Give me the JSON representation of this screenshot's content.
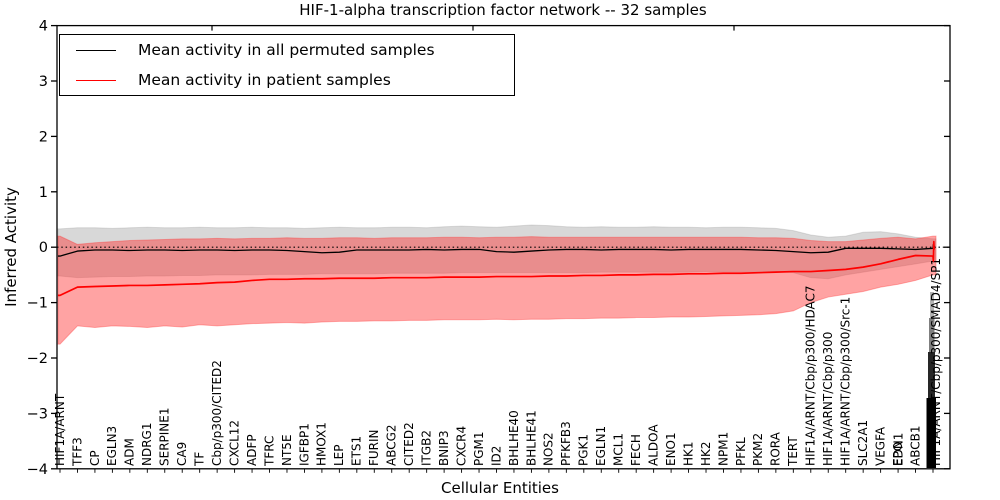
{
  "chart_data": {
    "type": "line",
    "title": "HIF-1-alpha transcription factor network -- 32 samples",
    "xlabel": "Cellular Entities",
    "ylabel": "Inferred Activity",
    "ylim": [
      -4,
      4
    ],
    "yticks": [
      4,
      3,
      2,
      1,
      0,
      -1,
      -2,
      -3,
      -4
    ],
    "grid": false,
    "zero_line": 0,
    "legend_position": "upper left",
    "x_categories": [
      "HIF1A/ARNT",
      "TFF3",
      "CP",
      "EGLN3",
      "ADM",
      "NDRG1",
      "SERPINE1",
      "CA9",
      "TF",
      "Cbp/p300/CITED2",
      "CXCL12",
      "ADFP",
      "TFRC",
      "NT5E",
      "IGFBP1",
      "HMOX1",
      "LEP",
      "ETS1",
      "FURIN",
      "ABCG2",
      "CITED2",
      "ITGB2",
      "BNIP3",
      "CXCR4",
      "PGM1",
      "ID2",
      "BHLHE40",
      "BHLHE41",
      "NOS2",
      "PFKFB3",
      "PGK1",
      "EGLN1",
      "MCL1",
      "FECH",
      "ALDOA",
      "ENO1",
      "HK1",
      "HK2",
      "NPM1",
      "PFKL",
      "PKM2",
      "RORA",
      "TERT",
      "HIF1A/ARNT/Cbp/p300/HDAC7",
      "HIF1A/ARNT/Cbp/p300",
      "HIF1A/ARNT/Cbp/p300/Src-1",
      "SLC2A1",
      "VEGFA",
      "EPO",
      "ABCB1",
      "HIF1A/ARNT/Cbp/p300/SMAD4/SP1"
    ],
    "x_overlap_labels": [
      {
        "index": 48,
        "label": "EDN1"
      }
    ],
    "x_cluster": {
      "index": 50,
      "illegible_overlap_blob": true
    },
    "series": [
      {
        "name": "Mean activity in all permuted samples",
        "color": "#000000",
        "band_color": "#999999",
        "mean": [
          -0.16,
          -0.07,
          -0.05,
          -0.05,
          -0.06,
          -0.05,
          -0.05,
          -0.06,
          -0.05,
          -0.05,
          -0.06,
          -0.05,
          -0.05,
          -0.06,
          -0.08,
          -0.1,
          -0.09,
          -0.05,
          -0.05,
          -0.05,
          -0.05,
          -0.04,
          -0.05,
          -0.04,
          -0.04,
          -0.08,
          -0.09,
          -0.07,
          -0.05,
          -0.04,
          -0.04,
          -0.05,
          -0.04,
          -0.04,
          -0.04,
          -0.05,
          -0.04,
          -0.04,
          -0.04,
          -0.04,
          -0.05,
          -0.06,
          -0.08,
          -0.1,
          -0.09,
          -0.02,
          -0.02,
          -0.02,
          -0.03,
          -0.04,
          -0.02
        ],
        "band_upper": [
          0.33,
          0.35,
          0.35,
          0.34,
          0.35,
          0.36,
          0.35,
          0.35,
          0.36,
          0.35,
          0.35,
          0.36,
          0.35,
          0.35,
          0.34,
          0.35,
          0.36,
          0.35,
          0.35,
          0.36,
          0.36,
          0.35,
          0.37,
          0.38,
          0.37,
          0.36,
          0.38,
          0.4,
          0.39,
          0.37,
          0.36,
          0.37,
          0.36,
          0.36,
          0.37,
          0.36,
          0.36,
          0.35,
          0.36,
          0.36,
          0.35,
          0.34,
          0.3,
          0.22,
          0.18,
          0.2,
          0.27,
          0.28,
          0.24,
          0.18,
          0.15
        ],
        "band_lower": [
          -0.52,
          -0.55,
          -0.54,
          -0.53,
          -0.53,
          -0.52,
          -0.52,
          -0.51,
          -0.51,
          -0.5,
          -0.5,
          -0.5,
          -0.49,
          -0.49,
          -0.49,
          -0.48,
          -0.48,
          -0.48,
          -0.48,
          -0.47,
          -0.47,
          -0.47,
          -0.47,
          -0.46,
          -0.46,
          -0.46,
          -0.46,
          -0.46,
          -0.46,
          -0.46,
          -0.46,
          -0.45,
          -0.45,
          -0.45,
          -0.45,
          -0.45,
          -0.45,
          -0.44,
          -0.44,
          -0.44,
          -0.44,
          -0.44,
          -0.46,
          -0.55,
          -0.57,
          -0.5,
          -0.45,
          -0.4,
          -0.35,
          -0.3,
          -0.25
        ],
        "end_spike": [
          0.05,
          -0.05,
          0.02,
          -0.02
        ]
      },
      {
        "name": "Mean activity in patient samples",
        "color": "#ff0000",
        "band_color": "#ff3333",
        "mean": [
          -0.87,
          -0.72,
          -0.71,
          -0.7,
          -0.69,
          -0.69,
          -0.68,
          -0.67,
          -0.66,
          -0.64,
          -0.63,
          -0.6,
          -0.58,
          -0.58,
          -0.57,
          -0.57,
          -0.56,
          -0.56,
          -0.56,
          -0.55,
          -0.55,
          -0.55,
          -0.54,
          -0.54,
          -0.54,
          -0.53,
          -0.53,
          -0.53,
          -0.52,
          -0.52,
          -0.51,
          -0.51,
          -0.5,
          -0.5,
          -0.49,
          -0.49,
          -0.48,
          -0.48,
          -0.47,
          -0.47,
          -0.46,
          -0.45,
          -0.44,
          -0.44,
          -0.42,
          -0.4,
          -0.36,
          -0.3,
          -0.22,
          -0.15,
          -0.16
        ],
        "band_upper": [
          0.2,
          0.05,
          0.08,
          0.1,
          0.12,
          0.13,
          0.14,
          0.15,
          0.15,
          0.16,
          0.15,
          0.16,
          0.16,
          0.17,
          0.16,
          0.16,
          0.17,
          0.17,
          0.16,
          0.17,
          0.17,
          0.17,
          0.18,
          0.18,
          0.17,
          0.18,
          0.18,
          0.19,
          0.18,
          0.18,
          0.18,
          0.18,
          0.18,
          0.18,
          0.18,
          0.18,
          0.18,
          0.18,
          0.18,
          0.18,
          0.17,
          0.17,
          0.16,
          0.12,
          0.1,
          0.1,
          0.13,
          0.16,
          0.18,
          0.15,
          0.2
        ],
        "band_lower": [
          -1.75,
          -1.42,
          -1.45,
          -1.42,
          -1.43,
          -1.45,
          -1.42,
          -1.44,
          -1.4,
          -1.42,
          -1.4,
          -1.38,
          -1.37,
          -1.36,
          -1.37,
          -1.35,
          -1.34,
          -1.34,
          -1.33,
          -1.33,
          -1.32,
          -1.32,
          -1.31,
          -1.31,
          -1.31,
          -1.3,
          -1.31,
          -1.3,
          -1.3,
          -1.29,
          -1.29,
          -1.28,
          -1.28,
          -1.27,
          -1.27,
          -1.26,
          -1.26,
          -1.25,
          -1.24,
          -1.23,
          -1.22,
          -1.2,
          -1.15,
          -1.0,
          -0.9,
          -0.85,
          -0.8,
          -0.72,
          -0.67,
          -0.6,
          -0.5
        ],
        "end_spike": [
          -0.25,
          0.1,
          -0.04
        ]
      }
    ]
  }
}
